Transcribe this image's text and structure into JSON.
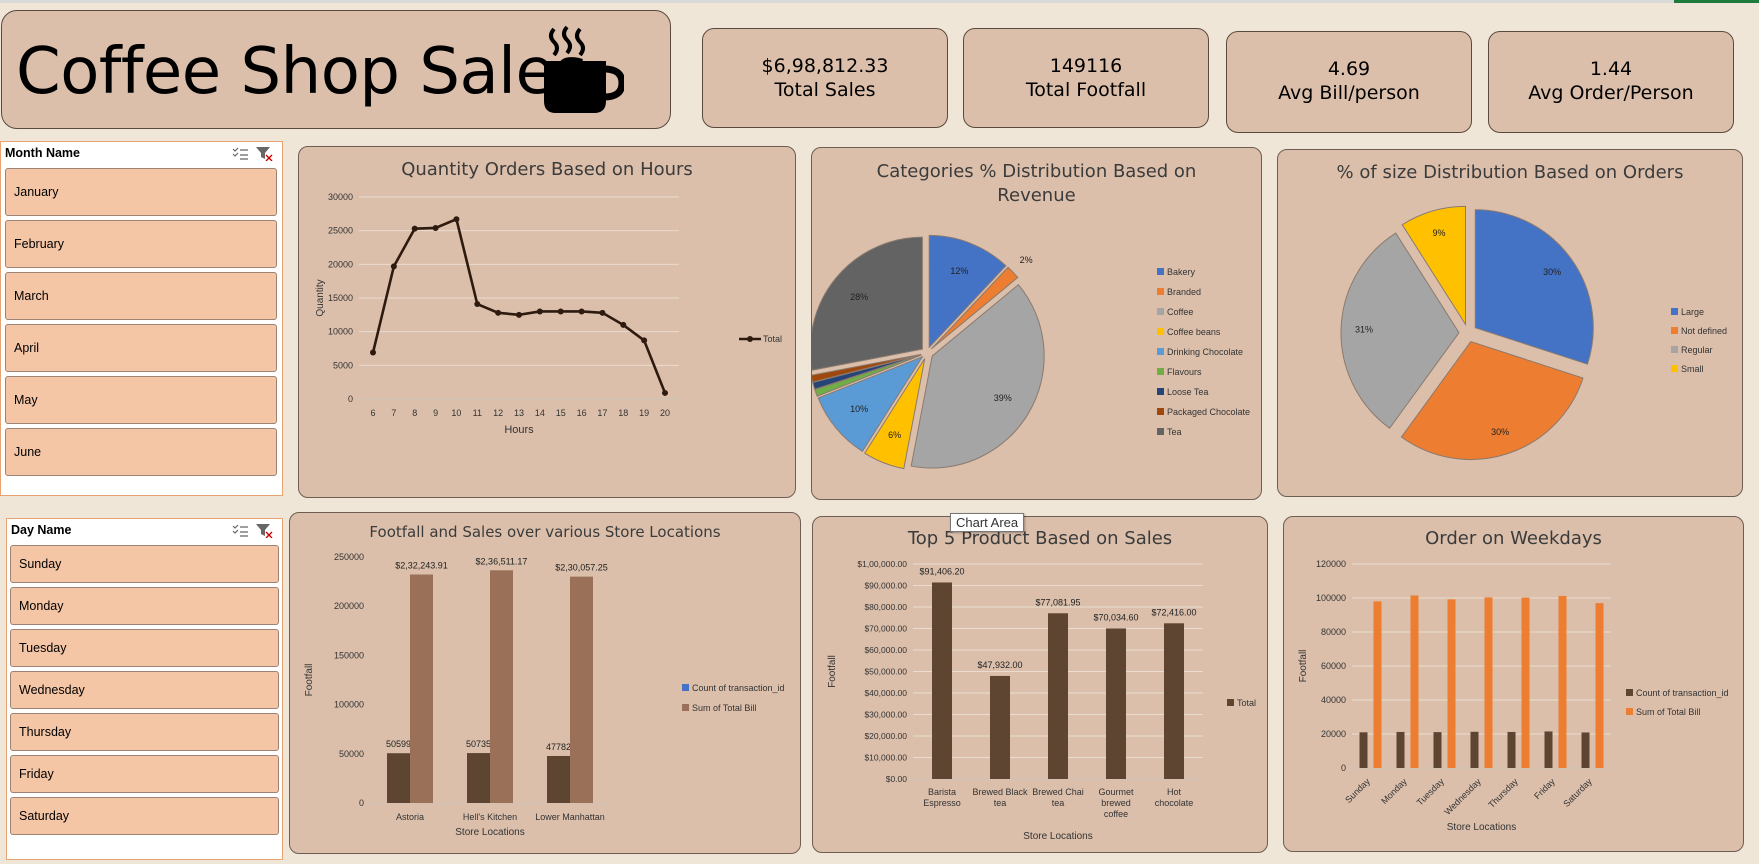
{
  "header": {
    "title": "Coffee Shop Sales"
  },
  "kpis": [
    {
      "value": "$6,98,812.33",
      "label": "Total Sales"
    },
    {
      "value": "149116",
      "label": "Total Footfall"
    },
    {
      "value": "4.69",
      "label": "Avg Bill/person"
    },
    {
      "value": "1.44",
      "label": "Avg Order/Person"
    }
  ],
  "month_slicer": {
    "title": "Month Name",
    "items": [
      "January",
      "February",
      "March",
      "April",
      "May",
      "June"
    ]
  },
  "day_slicer": {
    "title": "Day Name",
    "items": [
      "Sunday",
      "Monday",
      "Tuesday",
      "Wednesday",
      "Thursday",
      "Friday",
      "Saturday"
    ]
  },
  "tooltip": "Chart Area",
  "colors": {
    "panel": "#dbbfab",
    "dark_brown": "#5e4532",
    "light_brown": "#9a7158",
    "orange": "#ed7d31",
    "blue": "#4472c4",
    "gray": "#a5a5a5",
    "yellow": "#ffc000"
  },
  "chart_data": [
    {
      "type": "line",
      "title": "Quantity Orders Based on Hours",
      "xlabel": "Hours",
      "ylabel": "Quantity",
      "ylim": [
        0,
        30000
      ],
      "yticks": [
        "0",
        "5000",
        "10000",
        "15000",
        "20000",
        "25000",
        "30000"
      ],
      "legend": "right",
      "x": [
        6,
        7,
        8,
        9,
        10,
        11,
        12,
        13,
        14,
        15,
        16,
        17,
        18,
        19,
        20
      ],
      "series": [
        {
          "name": "Total",
          "values": [
            6900,
            19700,
            25300,
            25400,
            26700,
            14100,
            12800,
            12500,
            13000,
            13000,
            13000,
            12800,
            11000,
            8700,
            900
          ]
        }
      ]
    },
    {
      "type": "pie",
      "title": "Categories % Distribution Based on Revenue",
      "legend": "right",
      "labels": [
        "Bakery",
        "Branded",
        "Coffee",
        "Coffee beans",
        "Drinking Chocolate",
        "Flavours",
        "Loose Tea",
        "Packaged Chocolate",
        "Tea"
      ],
      "values": [
        12,
        2,
        39,
        6,
        10,
        1,
        1,
        1,
        28
      ],
      "value_labels": [
        "12%",
        "2%",
        "39%",
        "6%",
        "10%",
        "1%",
        "1%",
        "1%",
        "28%"
      ],
      "colors": [
        "#4472c4",
        "#ed7d31",
        "#a5a5a5",
        "#ffc000",
        "#5b9bd5",
        "#70ad47",
        "#264478",
        "#9e480e",
        "#636363"
      ]
    },
    {
      "type": "pie",
      "title": "% of size Distribution Based on Orders",
      "legend": "right",
      "labels": [
        "Large",
        "Not defined",
        "Regular",
        "Small"
      ],
      "values": [
        30,
        30,
        31,
        9
      ],
      "value_labels": [
        "30%",
        "30%",
        "31%",
        "9%"
      ],
      "colors": [
        "#4472c4",
        "#ed7d31",
        "#a5a5a5",
        "#ffc000"
      ]
    },
    {
      "type": "bar",
      "title": "Footfall and Sales over various Store Locations",
      "xlabel": "Store Locations",
      "ylabel": "Footfall",
      "ylim": [
        0,
        250000
      ],
      "yticks": [
        "0",
        "50000",
        "100000",
        "150000",
        "200000",
        "250000"
      ],
      "legend": "right",
      "categories": [
        "Astoria",
        "Hell's Kitchen",
        "Lower Manhattan"
      ],
      "series": [
        {
          "name": "Count of transaction_id",
          "values": [
            50599,
            50735,
            47782
          ],
          "labels": [
            "50599",
            "50735",
            "47782"
          ]
        },
        {
          "name": "Sum of Total Bill",
          "values": [
            232243.91,
            236511.17,
            230057.25
          ],
          "labels": [
            "$2,32,243.91",
            "$2,36,511.17",
            "$2,30,057.25"
          ]
        }
      ],
      "legend_colors": [
        "#4472c4",
        "#9a7158"
      ]
    },
    {
      "type": "bar",
      "title": "Top 5 Product Based on Sales",
      "xlabel": "Store Locations",
      "ylabel": "Footfall",
      "ylim": [
        0,
        100000
      ],
      "yticks": [
        "$0.00",
        "$10,000.00",
        "$20,000.00",
        "$30,000.00",
        "$40,000.00",
        "$50,000.00",
        "$60,000.00",
        "$70,000.00",
        "$80,000.00",
        "$90,000.00",
        "$1,00,000.00"
      ],
      "legend": "right",
      "categories": [
        [
          "Barista",
          "Espresso"
        ],
        [
          "Brewed Black",
          "tea"
        ],
        [
          "Brewed Chai",
          "tea"
        ],
        [
          "Gourmet",
          "brewed",
          "coffee"
        ],
        [
          "Hot",
          "chocolate"
        ]
      ],
      "series": [
        {
          "name": "Total",
          "values": [
            91406.2,
            47932.0,
            77081.95,
            70034.6,
            72416.0
          ],
          "labels": [
            "$91,406.20",
            "$47,932.00",
            "$77,081.95",
            "$70,034.60",
            "$72,416.00"
          ]
        }
      ]
    },
    {
      "type": "bar",
      "title": "Order on Weekdays",
      "xlabel": "Store Locations",
      "ylabel": "Footfall",
      "ylim": [
        0,
        120000
      ],
      "yticks": [
        "0",
        "20000",
        "40000",
        "60000",
        "80000",
        "100000",
        "120000"
      ],
      "legend": "right",
      "categories": [
        "Sunday",
        "Monday",
        "Tuesday",
        "Wednesday",
        "Thursday",
        "Friday",
        "Saturday"
      ],
      "series": [
        {
          "name": "Count of transaction_id",
          "values": [
            21000,
            21200,
            21100,
            21300,
            21200,
            21500,
            20900
          ]
        },
        {
          "name": "Sum of Total Bill",
          "values": [
            98000,
            101500,
            99200,
            100300,
            100200,
            101200,
            97000
          ]
        }
      ]
    }
  ]
}
